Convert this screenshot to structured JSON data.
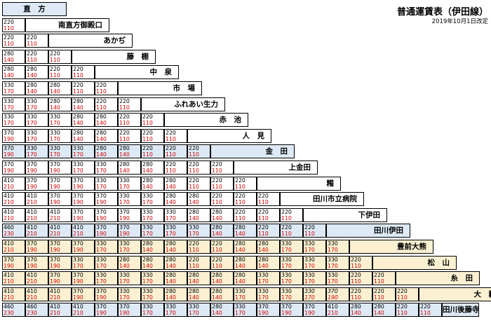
{
  "header": {
    "title": "普通運賃表（伊田線）",
    "revision_date": "2019年10月1日改定"
  },
  "stations": [
    {
      "name": "直　方",
      "hl": true,
      "yl": false
    },
    {
      "name": "南直方御殿口",
      "hl": false,
      "yl": false
    },
    {
      "name": "あかぢ",
      "hl": false,
      "yl": false
    },
    {
      "name": "藤　棚",
      "hl": false,
      "yl": false
    },
    {
      "name": "中　泉",
      "hl": false,
      "yl": false
    },
    {
      "name": "市　場",
      "hl": false,
      "yl": false
    },
    {
      "name": "ふれあい生力",
      "hl": false,
      "yl": false
    },
    {
      "name": "赤　池",
      "hl": false,
      "yl": false
    },
    {
      "name": "人　見",
      "hl": false,
      "yl": false
    },
    {
      "name": "金　田",
      "hl": true,
      "yl": false
    },
    {
      "name": "上金田",
      "hl": false,
      "yl": false
    },
    {
      "name": "糒",
      "hl": false,
      "yl": false
    },
    {
      "name": "田川市立病院",
      "hl": false,
      "yl": false
    },
    {
      "name": "下伊田",
      "hl": false,
      "yl": false
    },
    {
      "name": "田川伊田",
      "hl": true,
      "yl": false
    },
    {
      "name": "豊前大熊",
      "hl": false,
      "yl": true
    },
    {
      "name": "松　山",
      "hl": false,
      "yl": true
    },
    {
      "name": "糸　田",
      "hl": false,
      "yl": true
    },
    {
      "name": "大　藪",
      "hl": false,
      "yl": true
    },
    {
      "name": "田川後藤寺",
      "hl": true,
      "yl": false
    }
  ],
  "fares": [
    [],
    [
      [
        "220",
        "110"
      ]
    ],
    [
      [
        "220",
        "110"
      ],
      [
        "220",
        "110"
      ]
    ],
    [
      [
        "280",
        "140"
      ],
      [
        "220",
        "110"
      ],
      [
        "220",
        "110"
      ]
    ],
    [
      [
        "280",
        "140"
      ],
      [
        "280",
        "140"
      ],
      [
        "220",
        "110"
      ],
      [
        "220",
        "110"
      ]
    ],
    [
      [
        "330",
        "170"
      ],
      [
        "280",
        "140"
      ],
      [
        "280",
        "140"
      ],
      [
        "220",
        "110"
      ],
      [
        "220",
        "110"
      ]
    ],
    [
      [
        "330",
        "170"
      ],
      [
        "330",
        "170"
      ],
      [
        "280",
        "140"
      ],
      [
        "280",
        "140"
      ],
      [
        "220",
        "110"
      ],
      [
        "220",
        "110"
      ]
    ],
    [
      [
        "330",
        "170"
      ],
      [
        "330",
        "170"
      ],
      [
        "330",
        "170"
      ],
      [
        "280",
        "140"
      ],
      [
        "280",
        "140"
      ],
      [
        "220",
        "110"
      ],
      [
        "220",
        "110"
      ]
    ],
    [
      [
        "370",
        "190"
      ],
      [
        "330",
        "170"
      ],
      [
        "330",
        "170"
      ],
      [
        "280",
        "140"
      ],
      [
        "280",
        "140"
      ],
      [
        "220",
        "110"
      ],
      [
        "220",
        "110"
      ],
      [
        "220",
        "110"
      ]
    ],
    [
      [
        "370",
        "190"
      ],
      [
        "330",
        "170"
      ],
      [
        "330",
        "170"
      ],
      [
        "330",
        "170"
      ],
      [
        "280",
        "140"
      ],
      [
        "280",
        "140"
      ],
      [
        "220",
        "110"
      ],
      [
        "220",
        "110"
      ],
      [
        "220",
        "110"
      ]
    ],
    [
      [
        "370",
        "190"
      ],
      [
        "370",
        "190"
      ],
      [
        "370",
        "190"
      ],
      [
        "330",
        "170"
      ],
      [
        "330",
        "170"
      ],
      [
        "280",
        "140"
      ],
      [
        "280",
        "140"
      ],
      [
        "220",
        "110"
      ],
      [
        "220",
        "110"
      ],
      [
        "220",
        "110"
      ]
    ],
    [
      [
        "410",
        "210"
      ],
      [
        "370",
        "190"
      ],
      [
        "370",
        "190"
      ],
      [
        "370",
        "190"
      ],
      [
        "330",
        "170"
      ],
      [
        "330",
        "170"
      ],
      [
        "280",
        "140"
      ],
      [
        "280",
        "140"
      ],
      [
        "220",
        "110"
      ],
      [
        "220",
        "110"
      ],
      [
        "220",
        "110"
      ]
    ],
    [
      [
        "410",
        "210"
      ],
      [
        "410",
        "210"
      ],
      [
        "370",
        "190"
      ],
      [
        "370",
        "190"
      ],
      [
        "370",
        "190"
      ],
      [
        "330",
        "170"
      ],
      [
        "330",
        "170"
      ],
      [
        "280",
        "140"
      ],
      [
        "280",
        "140"
      ],
      [
        "220",
        "110"
      ],
      [
        "220",
        "110"
      ],
      [
        "220",
        "110"
      ]
    ],
    [
      [
        "410",
        "210"
      ],
      [
        "410",
        "210"
      ],
      [
        "410",
        "210"
      ],
      [
        "370",
        "190"
      ],
      [
        "370",
        "190"
      ],
      [
        "370",
        "190"
      ],
      [
        "330",
        "170"
      ],
      [
        "330",
        "170"
      ],
      [
        "280",
        "140"
      ],
      [
        "280",
        "140"
      ],
      [
        "220",
        "110"
      ],
      [
        "220",
        "110"
      ],
      [
        "220",
        "110"
      ]
    ],
    [
      [
        "460",
        "230"
      ],
      [
        "410",
        "210"
      ],
      [
        "410",
        "210"
      ],
      [
        "410",
        "210"
      ],
      [
        "370",
        "190"
      ],
      [
        "370",
        "190"
      ],
      [
        "330",
        "170"
      ],
      [
        "330",
        "170"
      ],
      [
        "330",
        "170"
      ],
      [
        "280",
        "140"
      ],
      [
        "280",
        "140"
      ],
      [
        "220",
        "110"
      ],
      [
        "220",
        "110"
      ],
      [
        "220",
        "110"
      ]
    ],
    [
      [
        "410",
        "210"
      ],
      [
        "370",
        "190"
      ],
      [
        "370",
        "190"
      ],
      [
        "370",
        "190"
      ],
      [
        "330",
        "170"
      ],
      [
        "330",
        "170"
      ],
      [
        "280",
        "140"
      ],
      [
        "280",
        "140"
      ],
      [
        "220",
        "110"
      ],
      [
        "220",
        "110"
      ],
      [
        "280",
        "140"
      ],
      [
        "280",
        "140"
      ],
      [
        "330",
        "170"
      ],
      [
        "330",
        "170"
      ],
      [
        "330",
        "170"
      ]
    ],
    [
      [
        "370",
        "190"
      ],
      [
        "370",
        "190"
      ],
      [
        "370",
        "190"
      ],
      [
        "330",
        "170"
      ],
      [
        "330",
        "170"
      ],
      [
        "280",
        "140"
      ],
      [
        "280",
        "140"
      ],
      [
        "280",
        "140"
      ],
      [
        "220",
        "110"
      ],
      [
        "220",
        "110"
      ],
      [
        "280",
        "140"
      ],
      [
        "280",
        "140"
      ],
      [
        "330",
        "170"
      ],
      [
        "330",
        "170"
      ],
      [
        "330",
        "170"
      ],
      [
        "220",
        "110"
      ]
    ],
    [
      [
        "410",
        "210"
      ],
      [
        "410",
        "210"
      ],
      [
        "370",
        "190"
      ],
      [
        "370",
        "190"
      ],
      [
        "330",
        "170"
      ],
      [
        "330",
        "170"
      ],
      [
        "330",
        "170"
      ],
      [
        "280",
        "140"
      ],
      [
        "280",
        "140"
      ],
      [
        "280",
        "140"
      ],
      [
        "280",
        "140"
      ],
      [
        "330",
        "170"
      ],
      [
        "330",
        "170"
      ],
      [
        "330",
        "170"
      ],
      [
        "330",
        "170"
      ],
      [
        "220",
        "110"
      ],
      [
        "220",
        "110"
      ]
    ],
    [
      [
        "410",
        "210"
      ],
      [
        "410",
        "210"
      ],
      [
        "410",
        "210"
      ],
      [
        "370",
        "190"
      ],
      [
        "370",
        "190"
      ],
      [
        "330",
        "170"
      ],
      [
        "330",
        "170"
      ],
      [
        "280",
        "140"
      ],
      [
        "280",
        "140"
      ],
      [
        "280",
        "140"
      ],
      [
        "330",
        "170"
      ],
      [
        "330",
        "170"
      ],
      [
        "330",
        "170"
      ],
      [
        "330",
        "170"
      ],
      [
        "370",
        "190"
      ],
      [
        "220",
        "110"
      ],
      [
        "220",
        "110"
      ],
      [
        "220",
        "110"
      ]
    ],
    [
      [
        "460",
        "230"
      ],
      [
        "460",
        "230"
      ],
      [
        "410",
        "210"
      ],
      [
        "410",
        "210"
      ],
      [
        "370",
        "190"
      ],
      [
        "370",
        "190"
      ],
      [
        "330",
        "170"
      ],
      [
        "330",
        "170"
      ],
      [
        "330",
        "170"
      ],
      [
        "280",
        "140"
      ],
      [
        "330",
        "170"
      ],
      [
        "370",
        "190"
      ],
      [
        "370",
        "190"
      ],
      [
        "370",
        "190"
      ],
      [
        "410",
        "210"
      ],
      [
        "280",
        "140"
      ],
      [
        "280",
        "140"
      ],
      [
        "220",
        "110"
      ],
      [
        "220",
        "110"
      ]
    ]
  ],
  "italic_cells": [
    [
      18,
      13
    ],
    [
      18,
      14
    ]
  ]
}
